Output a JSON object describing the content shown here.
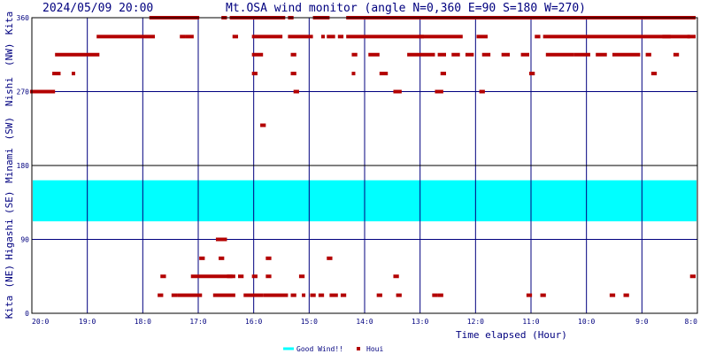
{
  "chart_data": {
    "type": "scatter",
    "timestamp": "2024/05/09 20:00",
    "title": "Mt.OSA wind monitor (angle N=0,360 E=90 S=180 W=270)",
    "xlabel": "Time elapsed (Hour)",
    "x_ticks": [
      {
        "hour": 0,
        "label": "20:0"
      },
      {
        "hour": 1,
        "label": "19:0"
      },
      {
        "hour": 2,
        "label": "18:0"
      },
      {
        "hour": 3,
        "label": "17:0"
      },
      {
        "hour": 4,
        "label": "16:0"
      },
      {
        "hour": 5,
        "label": "15:0"
      },
      {
        "hour": 6,
        "label": "14:0"
      },
      {
        "hour": 7,
        "label": "13:0"
      },
      {
        "hour": 8,
        "label": "12:0"
      },
      {
        "hour": 9,
        "label": "11:0"
      },
      {
        "hour": 10,
        "label": "10:0"
      },
      {
        "hour": 11,
        "label": "9:0"
      },
      {
        "hour": 12,
        "label": "8:0"
      }
    ],
    "xlim": [
      0,
      12
    ],
    "ylim": [
      0,
      360
    ],
    "y_ticks": [
      0,
      90,
      180,
      270,
      360
    ],
    "y_sector_labels": [
      {
        "label": "Kita",
        "from": 0,
        "to": 0
      },
      {
        "label": "(NE)",
        "from": 0,
        "to": 90
      },
      {
        "label": "Higashi",
        "from": 90,
        "to": 90
      },
      {
        "label": "(SE)",
        "from": 90,
        "to": 180
      },
      {
        "label": "Minami",
        "from": 180,
        "to": 180
      },
      {
        "label": "(SW)",
        "from": 180,
        "to": 270
      },
      {
        "label": "Nishi",
        "from": 270,
        "to": 270
      },
      {
        "label": "(NW)",
        "from": 270,
        "to": 360
      },
      {
        "label": "Kita",
        "from": 360,
        "to": 360
      }
    ],
    "grid": true,
    "legend_position": "bottom-center",
    "colors": {
      "good_wind": "#00ffff",
      "houi": "#b30000",
      "grid": "#00007f",
      "frame": "#000000"
    },
    "good_wind_band": {
      "name": "Good Wind!!",
      "from": 112,
      "to": 162
    },
    "series": [
      {
        "name": "Houi",
        "segments": [
          [
            0.0,
            0.45,
            270
          ],
          [
            0.45,
            1.25,
            315
          ],
          [
            0.4,
            0.55,
            292
          ],
          [
            0.75,
            0.8,
            292
          ],
          [
            1.2,
            2.25,
            337
          ],
          [
            2.15,
            3.05,
            360
          ],
          [
            2.7,
            2.8,
            337
          ],
          [
            2.8,
            2.95,
            337
          ],
          [
            3.45,
            3.55,
            360
          ],
          [
            3.6,
            4.6,
            360
          ],
          [
            3.65,
            3.75,
            337
          ],
          [
            4.0,
            4.55,
            337
          ],
          [
            4.0,
            4.2,
            315
          ],
          [
            4.0,
            4.1,
            292
          ],
          [
            4.15,
            4.25,
            229
          ],
          [
            4.65,
            4.75,
            360
          ],
          [
            4.65,
            5.1,
            337
          ],
          [
            4.7,
            4.8,
            315
          ],
          [
            4.7,
            4.8,
            292
          ],
          [
            4.75,
            4.85,
            270
          ],
          [
            5.1,
            5.4,
            360
          ],
          [
            5.25,
            5.3,
            337
          ],
          [
            5.35,
            5.5,
            337
          ],
          [
            5.55,
            5.65,
            337
          ],
          [
            5.7,
            12.0,
            360
          ],
          [
            5.7,
            7.8,
            337
          ],
          [
            5.8,
            5.9,
            315
          ],
          [
            5.8,
            5.85,
            292
          ],
          [
            6.1,
            6.3,
            315
          ],
          [
            6.3,
            6.45,
            292
          ],
          [
            6.55,
            6.7,
            270
          ],
          [
            6.8,
            7.3,
            315
          ],
          [
            7.0,
            7.1,
            337
          ],
          [
            7.35,
            7.5,
            315
          ],
          [
            7.4,
            7.5,
            292
          ],
          [
            7.6,
            7.75,
            315
          ],
          [
            7.85,
            8.0,
            315
          ],
          [
            8.05,
            8.25,
            337
          ],
          [
            8.1,
            8.2,
            270
          ],
          [
            8.15,
            8.3,
            315
          ],
          [
            8.5,
            8.65,
            315
          ],
          [
            8.85,
            9.0,
            315
          ],
          [
            9.0,
            9.1,
            292
          ],
          [
            9.1,
            9.2,
            337
          ],
          [
            9.25,
            11.9,
            337
          ],
          [
            9.3,
            9.8,
            315
          ],
          [
            9.8,
            10.1,
            315
          ],
          [
            10.2,
            10.4,
            315
          ],
          [
            10.5,
            11.0,
            315
          ],
          [
            10.9,
            11.0,
            360
          ],
          [
            11.1,
            11.2,
            315
          ],
          [
            11.2,
            11.3,
            292
          ],
          [
            11.4,
            11.55,
            337
          ],
          [
            11.6,
            11.7,
            315
          ],
          [
            11.85,
            12.0,
            337
          ],
          [
            7.3,
            7.45,
            270
          ],
          [
            2.3,
            2.4,
            22
          ],
          [
            2.35,
            2.45,
            45
          ],
          [
            2.55,
            2.65,
            22
          ],
          [
            2.65,
            3.1,
            22
          ],
          [
            2.9,
            3.7,
            45
          ],
          [
            3.05,
            3.15,
            67
          ],
          [
            3.4,
            3.5,
            67
          ],
          [
            3.35,
            3.55,
            90
          ],
          [
            3.3,
            3.7,
            22
          ],
          [
            3.55,
            3.65,
            45
          ],
          [
            3.75,
            3.85,
            45
          ],
          [
            3.85,
            4.2,
            22
          ],
          [
            4.0,
            4.1,
            45
          ],
          [
            4.25,
            4.35,
            45
          ],
          [
            4.2,
            4.65,
            22
          ],
          [
            4.25,
            4.35,
            67
          ],
          [
            4.7,
            4.8,
            22
          ],
          [
            4.85,
            4.95,
            45
          ],
          [
            4.9,
            4.95,
            22
          ],
          [
            5.05,
            5.15,
            22
          ],
          [
            5.2,
            5.3,
            22
          ],
          [
            5.35,
            5.45,
            67
          ],
          [
            5.4,
            5.55,
            22
          ],
          [
            5.6,
            5.7,
            22
          ],
          [
            6.25,
            6.35,
            22
          ],
          [
            6.55,
            6.65,
            45
          ],
          [
            6.6,
            6.7,
            22
          ],
          [
            7.25,
            7.35,
            22
          ],
          [
            7.35,
            7.45,
            22
          ],
          [
            8.95,
            9.05,
            22
          ],
          [
            9.2,
            9.3,
            22
          ],
          [
            10.45,
            10.55,
            22
          ],
          [
            10.7,
            10.8,
            22
          ],
          [
            11.9,
            12.0,
            45
          ]
        ]
      }
    ]
  }
}
